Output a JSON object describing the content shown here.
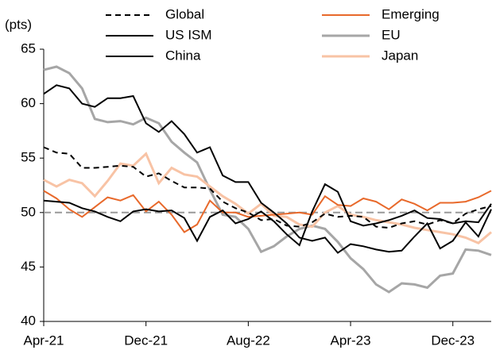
{
  "chart_data": {
    "type": "line",
    "y_label": "(pts)",
    "categories": [
      "Apr-21",
      null,
      null,
      null,
      null,
      null,
      null,
      null,
      "Dec-21",
      null,
      null,
      null,
      null,
      null,
      null,
      null,
      "Aug-22",
      null,
      null,
      null,
      null,
      null,
      null,
      null,
      "Apr-23",
      null,
      null,
      null,
      null,
      null,
      null,
      null,
      "Dec-23",
      null,
      null,
      null
    ],
    "ylim": [
      40,
      65
    ],
    "yticks": [
      40,
      45,
      50,
      55,
      60,
      65
    ],
    "reference_line": {
      "value": 50,
      "color": "#999999",
      "dashed": true
    },
    "series": [
      {
        "name": "Global",
        "color": "#000000",
        "dashed": true,
        "values": [
          56.0,
          55.5,
          55.4,
          54.1,
          54.1,
          54.2,
          54.3,
          54.2,
          53.3,
          53.6,
          52.9,
          52.3,
          52.3,
          52.2,
          51.0,
          50.4,
          50.0,
          49.3,
          49.4,
          48.8,
          48.7,
          49.1,
          49.9,
          49.6,
          49.7,
          49.6,
          48.7,
          48.6,
          49.0,
          49.2,
          48.9,
          49.3,
          49.0,
          49.9,
          50.3,
          50.6
        ]
      },
      {
        "name": "US ISM",
        "color": "#000000",
        "values": [
          60.9,
          61.7,
          61.4,
          60.0,
          59.7,
          60.5,
          60.5,
          60.7,
          58.2,
          57.4,
          58.4,
          57.2,
          55.5,
          56.0,
          53.4,
          52.8,
          52.8,
          50.9,
          50.0,
          49.0,
          47.7,
          47.4,
          47.7,
          46.3,
          47.1,
          46.9,
          46.6,
          46.4,
          46.5,
          47.8,
          49.0,
          46.7,
          47.4,
          49.1,
          47.8,
          50.3
        ]
      },
      {
        "name": "China",
        "color": "#000000",
        "values": [
          51.1,
          51.0,
          50.9,
          50.4,
          50.1,
          49.6,
          49.2,
          50.1,
          50.3,
          50.1,
          50.2,
          49.5,
          47.4,
          49.6,
          50.2,
          49.0,
          49.4,
          50.1,
          49.2,
          48.0,
          47.0,
          50.1,
          52.6,
          51.9,
          49.2,
          48.8,
          49.0,
          49.3,
          49.7,
          50.2,
          49.5,
          49.4,
          49.0,
          49.2,
          49.1,
          50.8
        ]
      },
      {
        "name": "Emerging",
        "color": "#e8692b",
        "values": [
          52.0,
          51.3,
          50.3,
          49.6,
          50.5,
          51.4,
          51.1,
          51.6,
          50.1,
          51.0,
          49.8,
          48.2,
          48.9,
          51.1,
          50.0,
          50.0,
          49.6,
          49.7,
          49.8,
          49.9,
          50.0,
          49.8,
          51.5,
          50.7,
          50.6,
          51.3,
          51.0,
          50.3,
          51.2,
          50.8,
          50.2,
          50.9,
          50.9,
          51.0,
          51.4,
          52.0
        ]
      },
      {
        "name": "EU",
        "color": "#a6a6a6",
        "values": [
          63.1,
          63.4,
          62.8,
          61.4,
          58.6,
          58.3,
          58.4,
          58.1,
          58.7,
          58.2,
          56.5,
          55.5,
          54.6,
          52.1,
          49.8,
          49.6,
          48.5,
          46.4,
          46.9,
          47.8,
          48.5,
          48.8,
          48.5,
          47.3,
          45.8,
          44.8,
          43.4,
          42.7,
          43.5,
          43.4,
          43.1,
          44.2,
          44.4,
          46.6,
          46.5,
          46.1
        ]
      },
      {
        "name": "Japan",
        "color": "#f8c3a5",
        "values": [
          53.0,
          52.4,
          53.0,
          52.7,
          51.5,
          52.9,
          54.5,
          54.3,
          55.4,
          52.7,
          54.1,
          53.5,
          53.3,
          52.4,
          51.5,
          50.8,
          49.9,
          50.8,
          49.7,
          49.6,
          48.9,
          48.7,
          50.0,
          50.6,
          49.8,
          49.6,
          49.3,
          49.1,
          48.9,
          48.6,
          48.4,
          48.2,
          48.0,
          47.7,
          47.2,
          48.2
        ]
      }
    ]
  }
}
